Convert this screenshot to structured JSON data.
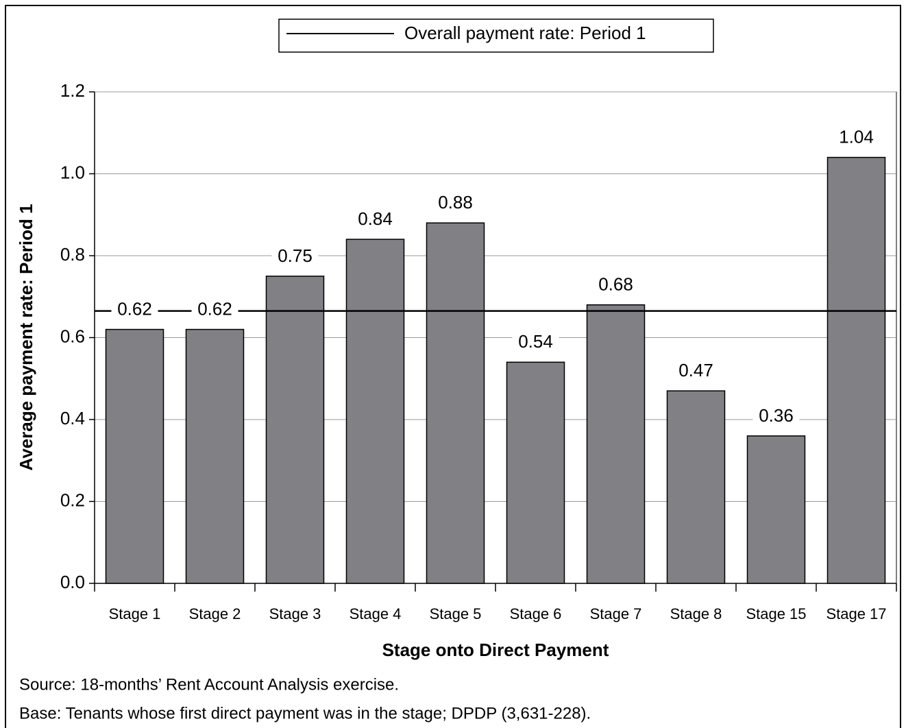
{
  "chart_data": {
    "type": "bar",
    "categories": [
      "Stage 1",
      "Stage 2",
      "Stage 3",
      "Stage 4",
      "Stage 5",
      "Stage 6",
      "Stage 7",
      "Stage 8",
      "Stage 15",
      "Stage 17"
    ],
    "values": [
      0.62,
      0.62,
      0.75,
      0.84,
      0.88,
      0.54,
      0.68,
      0.47,
      0.36,
      1.04
    ],
    "color": "#808085",
    "ylim": [
      0,
      1.2
    ],
    "yticks": [
      {
        "value": 0,
        "label": "0.0"
      },
      0.2,
      0.4,
      0.6,
      0.8,
      {
        "value": 1,
        "label": "1.0"
      },
      1.2
    ],
    "grid": true,
    "x_label": "Stage onto Direct Payment",
    "y_label": "Average payment rate: Period 1",
    "reference_line": {
      "name": "Overall payment rate: Period 1",
      "value": 0.665,
      "color": "#000000"
    },
    "legend": "top",
    "notes": [
      "Source: 18-months’ Rent Account Analysis exercise.",
      "Base: Tenants whose first direct payment was in the stage; DPDP (3,631-228)."
    ]
  }
}
